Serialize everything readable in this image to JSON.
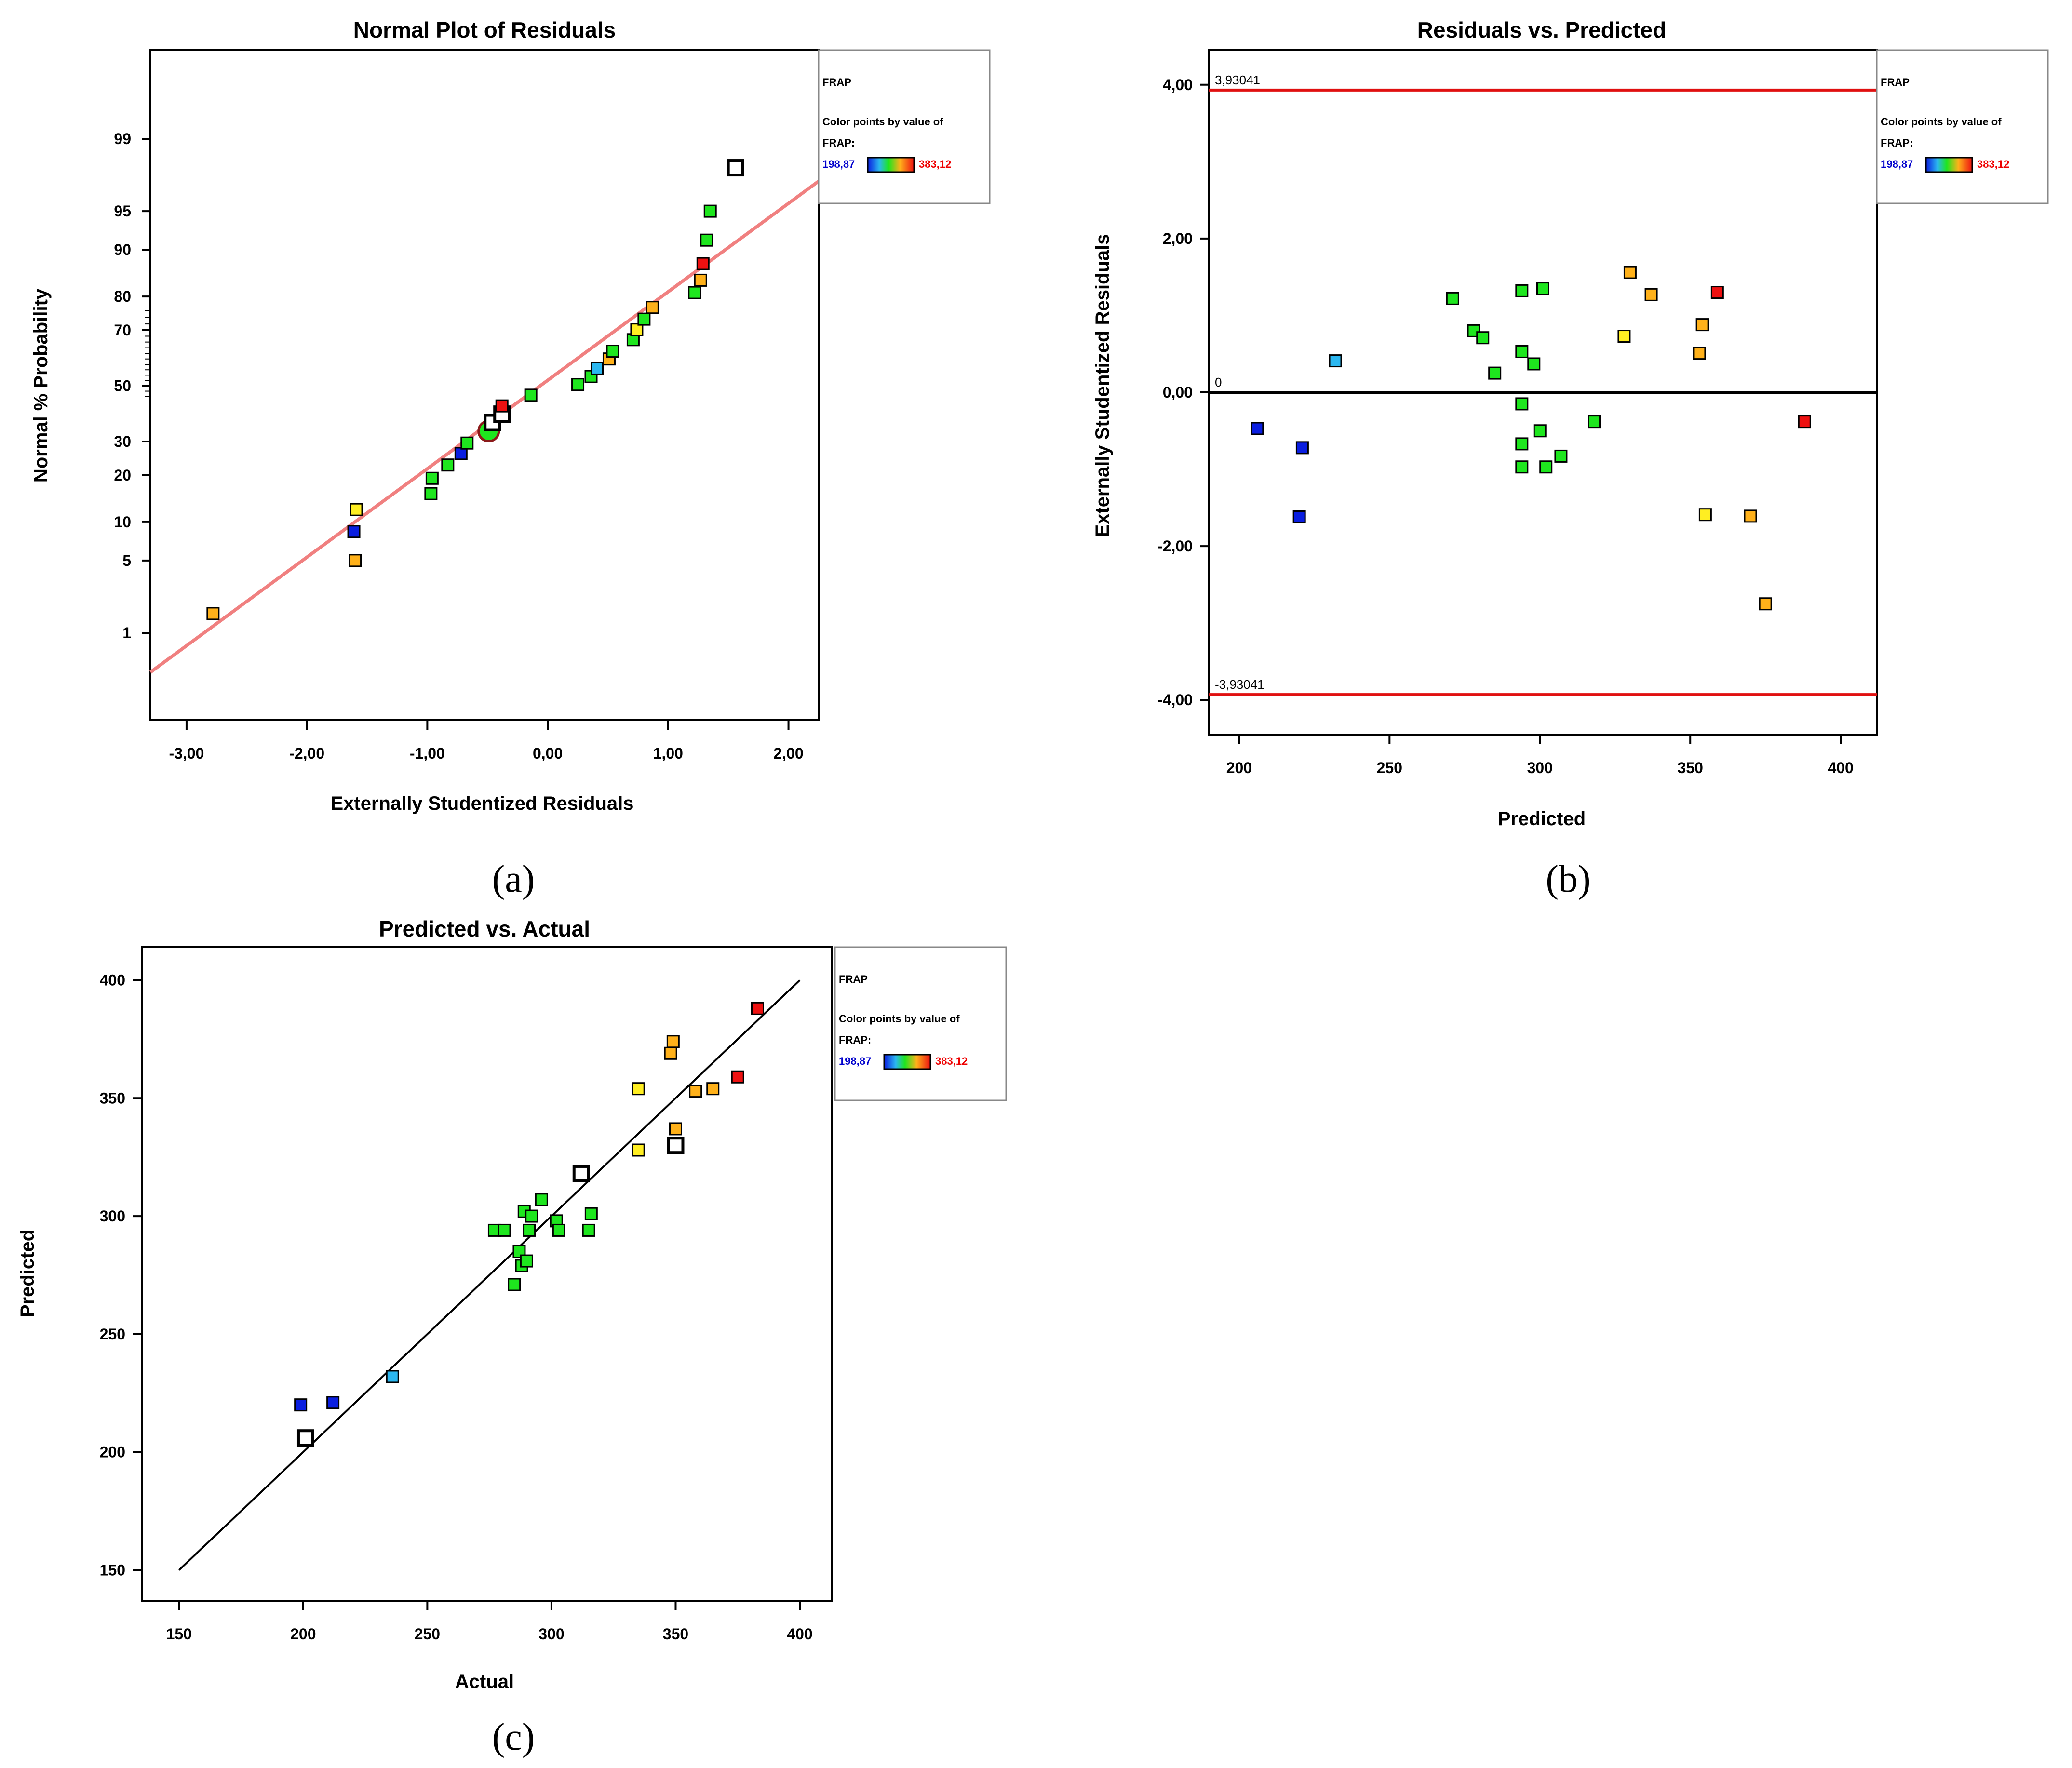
{
  "colors": {
    "low": "#0a1ee0",
    "mid_low": "#2bb7f0",
    "mid": "#1ee61e",
    "mid_high": "#ffee22",
    "high_orange": "#ffb11a",
    "high": "#ee1111",
    "fit_line_a": "#f08080",
    "limit_line": "#e01010",
    "zero_line": "#000000",
    "legend_min_text": "#0000cc",
    "legend_max_text": "#ee0000"
  },
  "legend": {
    "title": "FRAP",
    "line1": "Color points by value of",
    "line2": "FRAP:",
    "min": "198,87",
    "max": "383,12"
  },
  "panel_labels": [
    "(a)",
    "(b)",
    "(c)"
  ],
  "chart_data": [
    {
      "type": "scatter",
      "title": "Normal Plot of Residuals",
      "xlabel": "Externally Studentized Residuals",
      "ylabel": "Normal % Probability",
      "xlim": [
        -3.3,
        2.25
      ],
      "x_ticks": [
        -3,
        -2,
        -1,
        0,
        1,
        2
      ],
      "x_tick_labels": [
        "-3,00",
        "-2,00",
        "-1,00",
        "0,00",
        "1,00",
        "2,00"
      ],
      "y_scale": "normal probability",
      "y_ticks": [
        1,
        5,
        10,
        20,
        30,
        50,
        70,
        80,
        90,
        95,
        99
      ],
      "y_tick_labels": [
        "1",
        "5",
        "10",
        "20",
        "30",
        "50",
        "70",
        "80",
        "90",
        "95",
        "99"
      ],
      "fit_line": {
        "x": [
          -3.3,
          2.25
        ],
        "y": [
          0.35,
          97.3
        ]
      },
      "points": [
        {
          "x": -2.78,
          "y": 1.6,
          "c": "high_orange"
        },
        {
          "x": -1.6,
          "y": 5.0,
          "c": "high_orange"
        },
        {
          "x": -1.61,
          "y": 8.5,
          "c": "low"
        },
        {
          "x": -1.59,
          "y": 12.2,
          "c": "mid_high"
        },
        {
          "x": -0.97,
          "y": 15.5,
          "c": "mid"
        },
        {
          "x": -0.96,
          "y": 19.2,
          "c": "mid"
        },
        {
          "x": -0.83,
          "y": 22.8,
          "c": "mid"
        },
        {
          "x": -0.72,
          "y": 26.2,
          "c": "low"
        },
        {
          "x": -0.67,
          "y": 29.5,
          "c": "mid"
        },
        {
          "x": -0.5,
          "y": 32.8,
          "c": "mid"
        },
        {
          "x": -0.49,
          "y": 33.5,
          "c": "ring"
        },
        {
          "x": -0.46,
          "y": 36.5,
          "c": "hollow"
        },
        {
          "x": -0.38,
          "y": 39.5,
          "c": "hollow"
        },
        {
          "x": -0.38,
          "y": 42.5,
          "c": "high"
        },
        {
          "x": -0.14,
          "y": 46.5,
          "c": "mid"
        },
        {
          "x": 0.25,
          "y": 50.5,
          "c": "mid"
        },
        {
          "x": 0.36,
          "y": 53.5,
          "c": "mid"
        },
        {
          "x": 0.41,
          "y": 56.5,
          "c": "mid_low"
        },
        {
          "x": 0.51,
          "y": 60.0,
          "c": "high_orange"
        },
        {
          "x": 0.54,
          "y": 62.8,
          "c": "mid"
        },
        {
          "x": 0.71,
          "y": 66.8,
          "c": "mid"
        },
        {
          "x": 0.74,
          "y": 70.2,
          "c": "mid_high"
        },
        {
          "x": 0.8,
          "y": 73.5,
          "c": "mid"
        },
        {
          "x": 0.87,
          "y": 77.0,
          "c": "high_orange"
        },
        {
          "x": 1.22,
          "y": 81.0,
          "c": "mid"
        },
        {
          "x": 1.27,
          "y": 84.0,
          "c": "high_orange"
        },
        {
          "x": 1.29,
          "y": 87.5,
          "c": "high"
        },
        {
          "x": 1.32,
          "y": 91.5,
          "c": "mid"
        },
        {
          "x": 1.35,
          "y": 95.0,
          "c": "mid"
        },
        {
          "x": 1.56,
          "y": 98.0,
          "c": "hollow"
        }
      ]
    },
    {
      "type": "scatter",
      "title": "Residuals vs. Predicted",
      "xlabel": "Predicted",
      "ylabel": "Externally Studentized Residuals",
      "xlim": [
        190,
        412
      ],
      "ylim": [
        -4.45,
        4.45
      ],
      "x_ticks": [
        200,
        250,
        300,
        350,
        400
      ],
      "x_tick_labels": [
        "200",
        "250",
        "300",
        "350",
        "400"
      ],
      "y_ticks": [
        -4,
        -2,
        0,
        2,
        4
      ],
      "y_tick_labels": [
        "-4,00",
        "-2,00",
        "0,00",
        "2,00",
        "4,00"
      ],
      "limit_lines": [
        {
          "y": 3.93041,
          "label": "3,93041",
          "kind": "limit"
        },
        {
          "y": 0,
          "label": "0",
          "kind": "zero"
        },
        {
          "y": -3.93041,
          "label": "-3,93041",
          "kind": "limit"
        }
      ],
      "points": [
        {
          "x": 206,
          "y": -0.47,
          "c": "low"
        },
        {
          "x": 220,
          "y": -1.62,
          "c": "low"
        },
        {
          "x": 221,
          "y": -0.72,
          "c": "low"
        },
        {
          "x": 232,
          "y": 0.41,
          "c": "mid_low"
        },
        {
          "x": 271,
          "y": 1.22,
          "c": "mid"
        },
        {
          "x": 278,
          "y": 0.8,
          "c": "mid"
        },
        {
          "x": 281,
          "y": 0.71,
          "c": "mid"
        },
        {
          "x": 285,
          "y": 0.25,
          "c": "mid"
        },
        {
          "x": 294,
          "y": 1.32,
          "c": "mid"
        },
        {
          "x": 294,
          "y": 0.53,
          "c": "mid"
        },
        {
          "x": 294,
          "y": -0.15,
          "c": "mid"
        },
        {
          "x": 294,
          "y": -0.67,
          "c": "mid"
        },
        {
          "x": 294,
          "y": -0.97,
          "c": "mid"
        },
        {
          "x": 298,
          "y": 0.37,
          "c": "mid"
        },
        {
          "x": 300,
          "y": -0.5,
          "c": "mid"
        },
        {
          "x": 301,
          "y": 1.35,
          "c": "mid"
        },
        {
          "x": 302,
          "y": -0.97,
          "c": "mid"
        },
        {
          "x": 307,
          "y": -0.83,
          "c": "mid"
        },
        {
          "x": 318,
          "y": -0.38,
          "c": "mid"
        },
        {
          "x": 328,
          "y": 0.73,
          "c": "mid_high"
        },
        {
          "x": 330,
          "y": 1.56,
          "c": "high_orange"
        },
        {
          "x": 337,
          "y": 1.27,
          "c": "high_orange"
        },
        {
          "x": 353,
          "y": 0.51,
          "c": "high_orange"
        },
        {
          "x": 354,
          "y": 0.88,
          "c": "high_orange"
        },
        {
          "x": 355,
          "y": -1.59,
          "c": "mid_high"
        },
        {
          "x": 359,
          "y": 1.3,
          "c": "high"
        },
        {
          "x": 370,
          "y": -1.61,
          "c": "high_orange"
        },
        {
          "x": 375,
          "y": -2.75,
          "c": "high_orange"
        },
        {
          "x": 388,
          "y": -0.38,
          "c": "high"
        }
      ]
    },
    {
      "type": "scatter",
      "title": "Predicted vs. Actual",
      "xlabel": "Actual",
      "ylabel": "Predicted",
      "xlim": [
        135,
        413
      ],
      "ylim": [
        137,
        414
      ],
      "x_ticks": [
        150,
        200,
        250,
        300,
        350,
        400
      ],
      "x_tick_labels": [
        "150",
        "200",
        "250",
        "300",
        "350",
        "400"
      ],
      "y_ticks": [
        150,
        200,
        250,
        300,
        350,
        400
      ],
      "y_tick_labels": [
        "150",
        "200",
        "250",
        "300",
        "350",
        "400"
      ],
      "fit_line": {
        "x": [
          150,
          400
        ],
        "y": [
          150,
          400
        ]
      },
      "points": [
        {
          "x": 199,
          "y": 220,
          "c": "low"
        },
        {
          "x": 201,
          "y": 206,
          "c": "hollow"
        },
        {
          "x": 212,
          "y": 221,
          "c": "low"
        },
        {
          "x": 236,
          "y": 232,
          "c": "mid_low"
        },
        {
          "x": 277,
          "y": 294,
          "c": "mid"
        },
        {
          "x": 281,
          "y": 294,
          "c": "mid"
        },
        {
          "x": 285,
          "y": 271,
          "c": "mid"
        },
        {
          "x": 287,
          "y": 285,
          "c": "mid"
        },
        {
          "x": 288,
          "y": 279,
          "c": "mid"
        },
        {
          "x": 289,
          "y": 302,
          "c": "mid"
        },
        {
          "x": 290,
          "y": 281,
          "c": "mid"
        },
        {
          "x": 291,
          "y": 294,
          "c": "mid"
        },
        {
          "x": 292,
          "y": 300,
          "c": "mid"
        },
        {
          "x": 296,
          "y": 307,
          "c": "mid"
        },
        {
          "x": 302,
          "y": 298,
          "c": "mid"
        },
        {
          "x": 303,
          "y": 294,
          "c": "mid"
        },
        {
          "x": 312,
          "y": 318,
          "c": "hollow"
        },
        {
          "x": 315,
          "y": 294,
          "c": "mid"
        },
        {
          "x": 316,
          "y": 301,
          "c": "mid"
        },
        {
          "x": 335,
          "y": 354,
          "c": "mid_high"
        },
        {
          "x": 335,
          "y": 328,
          "c": "mid_high"
        },
        {
          "x": 348,
          "y": 369,
          "c": "high_orange"
        },
        {
          "x": 349,
          "y": 374,
          "c": "high_orange"
        },
        {
          "x": 350,
          "y": 337,
          "c": "high_orange"
        },
        {
          "x": 350,
          "y": 330,
          "c": "hollow"
        },
        {
          "x": 358,
          "y": 353,
          "c": "high_orange"
        },
        {
          "x": 365,
          "y": 354,
          "c": "high_orange"
        },
        {
          "x": 375,
          "y": 359,
          "c": "high"
        },
        {
          "x": 383,
          "y": 388,
          "c": "high"
        }
      ]
    }
  ]
}
